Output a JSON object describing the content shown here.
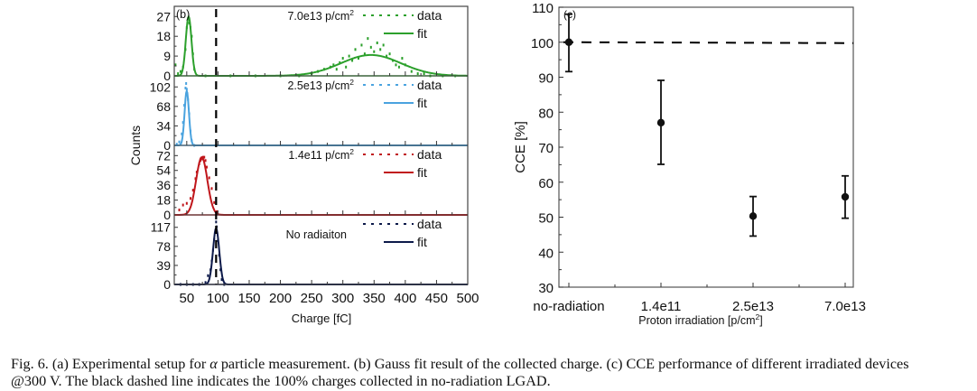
{
  "chart_data": [
    {
      "panel": "(b)",
      "type": "line",
      "title": "",
      "xlabel": "Charge [fC]",
      "ylabel": "Counts",
      "xlim": [
        30,
        500
      ],
      "xticks": [
        50,
        100,
        150,
        200,
        250,
        300,
        350,
        400,
        450,
        500
      ],
      "reference_line": {
        "x": 97,
        "style": "dashed",
        "color": "#000000"
      },
      "subplots": [
        {
          "label": "7.0e13 p/cm",
          "label_sup": "2",
          "color": "#2ca02c",
          "ylim": [
            0,
            30
          ],
          "yticks": [
            0,
            9,
            18,
            27
          ],
          "legend": {
            "data": "data",
            "fit": "fit"
          },
          "fit_peaks": [
            {
              "mean": 53,
              "sigma": 4.5,
              "amp": 27
            },
            {
              "mean": 345,
              "sigma": 48,
              "amp": 9.5
            }
          ],
          "data_points": {
            "x": [
              32,
              36,
              40,
              44,
              48,
              50,
              52,
              54,
              56,
              58,
              60,
              62,
              80,
              120,
              160,
              200,
              230,
              250,
              260,
              270,
              280,
              285,
              290,
              295,
              300,
              305,
              310,
              315,
              320,
              325,
              330,
              335,
              340,
              345,
              350,
              355,
              360,
              365,
              370,
              375,
              380,
              385,
              390,
              395,
              400,
              410,
              420,
              430,
              440,
              460,
              480
            ],
            "y": [
              5,
              1,
              2,
              4,
              12,
              22,
              26,
              24,
              22,
              18,
              10,
              3,
              0,
              0,
              0,
              0,
              0,
              1,
              2,
              3,
              4,
              5,
              3,
              6,
              8,
              4,
              9,
              7,
              12,
              8,
              14,
              10,
              17,
              13,
              11,
              15,
              12,
              14,
              9,
              10,
              7,
              5,
              4,
              8,
              5,
              2,
              1,
              1,
              0,
              0,
              0
            ]
          }
        },
        {
          "label": "2.5e13 p/cm",
          "label_sup": "2",
          "color": "#4aa3df",
          "ylim": [
            0,
            115
          ],
          "yticks": [
            0,
            34,
            68,
            102
          ],
          "legend": {
            "data": "data",
            "fit": "fit"
          },
          "fit_peaks": [
            {
              "mean": 50,
              "sigma": 3.5,
              "amp": 95
            }
          ],
          "data_points": {
            "x": [
              34,
              38,
              42,
              44,
              46,
              48,
              49,
              50,
              51,
              52,
              54,
              56,
              58,
              62
            ],
            "y": [
              2,
              6,
              20,
              40,
              70,
              100,
              108,
              98,
              90,
              80,
              55,
              25,
              8,
              0
            ]
          }
        },
        {
          "label": "1.4e11 p/cm",
          "label_sup": "2",
          "color": "#c0161b",
          "ylim": [
            0,
            80
          ],
          "yticks": [
            0,
            18,
            36,
            54,
            72
          ],
          "legend": {
            "data": "data",
            "fit": "fit"
          },
          "fit_peaks": [
            {
              "mean": 74,
              "sigma": 9,
              "amp": 70
            }
          ],
          "data_points": {
            "x": [
              38,
              44,
              50,
              56,
              60,
              64,
              66,
              70,
              72,
              74,
              76,
              78,
              80,
              82,
              86,
              90,
              94,
              98
            ],
            "y": [
              6,
              12,
              14,
              20,
              30,
              44,
              52,
              62,
              66,
              68,
              70,
              70,
              66,
              58,
              45,
              32,
              15,
              4
            ]
          }
        },
        {
          "label": "No radiaiton",
          "label_sup": "",
          "color": "#0d1a4a",
          "ylim": [
            0,
            135
          ],
          "yticks": [
            0,
            39,
            78,
            117
          ],
          "legend": {
            "data": "data",
            "fit": "fit"
          },
          "fit_peaks": [
            {
              "mean": 97,
              "sigma": 5,
              "amp": 115
            }
          ],
          "data_points": {
            "x": [
              40,
              50,
              60,
              70,
              80,
              84,
              88,
              90,
              92,
              94,
              96,
              97,
              98,
              100,
              102,
              104,
              106,
              110
            ],
            "y": [
              0,
              0,
              0,
              0,
              4,
              18,
              30,
              48,
              70,
              92,
              110,
              128,
              118,
              90,
              60,
              30,
              10,
              0
            ]
          }
        }
      ]
    },
    {
      "panel": "(c)",
      "type": "scatter",
      "title": "",
      "xlabel": "Proton irradiation [p/cm",
      "xlabel_sup": "2",
      "xlabel_tail": "]",
      "ylabel": "CCE [%]",
      "ylim": [
        30,
        110
      ],
      "yticks": [
        30,
        40,
        50,
        60,
        70,
        80,
        90,
        100,
        110
      ],
      "categories": [
        "no-radiation",
        "1.4e11",
        "2.5e13",
        "7.0e13"
      ],
      "values": [
        100,
        77,
        50.3,
        55.8
      ],
      "error_low": [
        91.6,
        65.1,
        44.6,
        49.7
      ],
      "error_high": [
        108,
        89.1,
        55.9,
        61.8
      ],
      "reference_line": {
        "y": 100,
        "style": "dashed",
        "color": "#000000"
      },
      "grid": false,
      "color": "#000000"
    }
  ],
  "caption": {
    "line1_a": "Fig. 6.  (a) Experimental setup for ",
    "alpha": "α",
    "line1_b": " particle measurement. (b) Gauss fit result of the collected charge. (c) CCE performance of different irradiated devices",
    "line2": "@300 V. The black dashed line indicates the 100% charges collected in no-radiation LGAD."
  }
}
